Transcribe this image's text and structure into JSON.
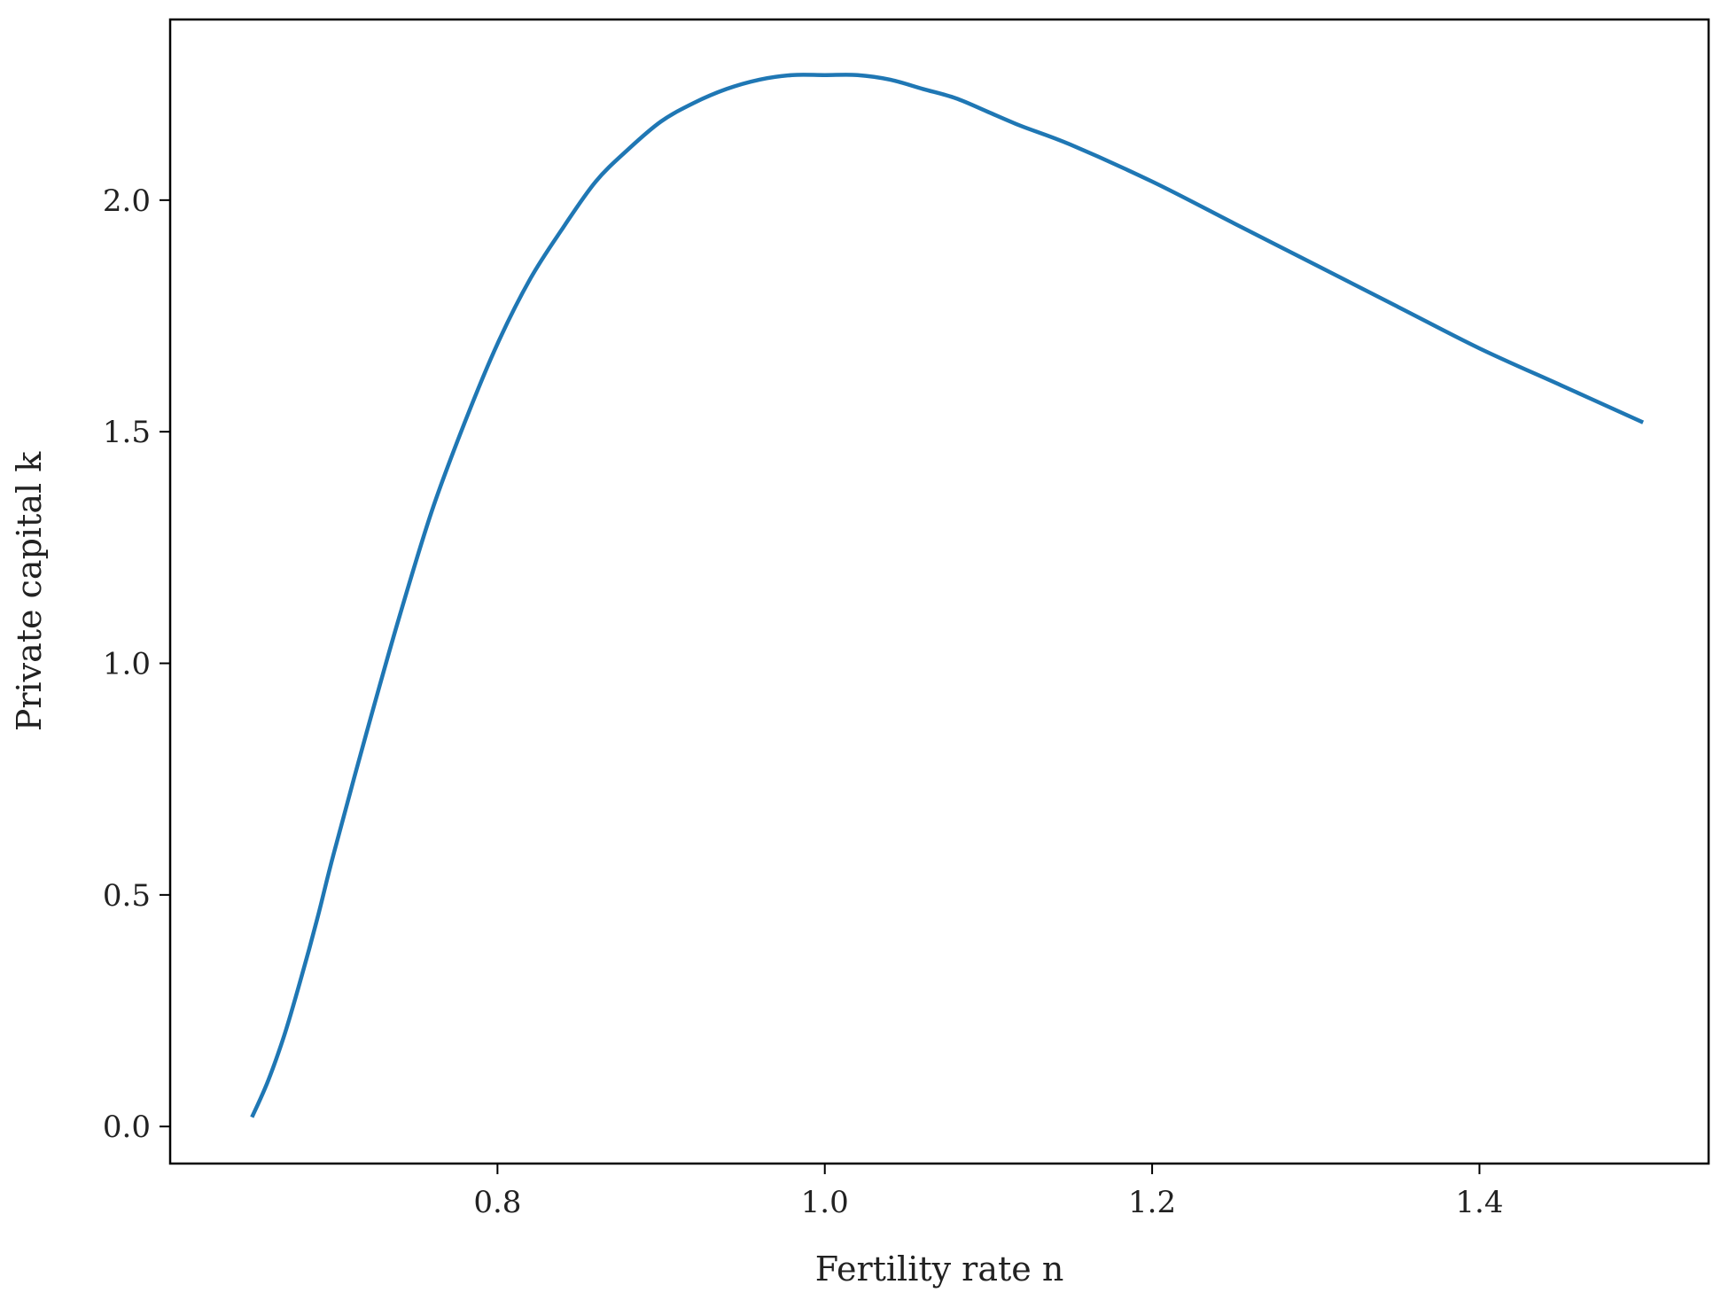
{
  "chart_data": {
    "type": "line",
    "title": "",
    "xlabel": "Fertility rate n",
    "ylabel": "Private capital k",
    "xlim": [
      0.6,
      1.54
    ],
    "ylim": [
      -0.08,
      2.39
    ],
    "xticks": [
      {
        "value": 0.8,
        "label": "0.8"
      },
      {
        "value": 1.0,
        "label": "1.0"
      },
      {
        "value": 1.2,
        "label": "1.2"
      },
      {
        "value": 1.4,
        "label": "1.4"
      }
    ],
    "yticks": [
      {
        "value": 0.0,
        "label": "0.0"
      },
      {
        "value": 0.5,
        "label": "0.5"
      },
      {
        "value": 1.0,
        "label": "1.0"
      },
      {
        "value": 1.5,
        "label": "1.5"
      },
      {
        "value": 2.0,
        "label": "2.0"
      }
    ],
    "grid": false,
    "legend": "none",
    "series": [
      {
        "color": "#1f77b4",
        "x": [
          0.65,
          0.66,
          0.67,
          0.68,
          0.69,
          0.7,
          0.72,
          0.74,
          0.76,
          0.78,
          0.8,
          0.82,
          0.84,
          0.86,
          0.88,
          0.9,
          0.92,
          0.94,
          0.96,
          0.98,
          1.0,
          1.02,
          1.04,
          1.06,
          1.08,
          1.1,
          1.12,
          1.15,
          1.2,
          1.25,
          1.3,
          1.35,
          1.4,
          1.45,
          1.5
        ],
        "y": [
          0.02,
          0.1,
          0.2,
          0.32,
          0.45,
          0.59,
          0.85,
          1.1,
          1.33,
          1.52,
          1.69,
          1.83,
          1.94,
          2.04,
          2.11,
          2.17,
          2.21,
          2.24,
          2.26,
          2.27,
          2.27,
          2.27,
          2.26,
          2.24,
          2.22,
          2.19,
          2.16,
          2.12,
          2.04,
          1.95,
          1.86,
          1.77,
          1.68,
          1.6,
          1.52
        ]
      }
    ]
  }
}
